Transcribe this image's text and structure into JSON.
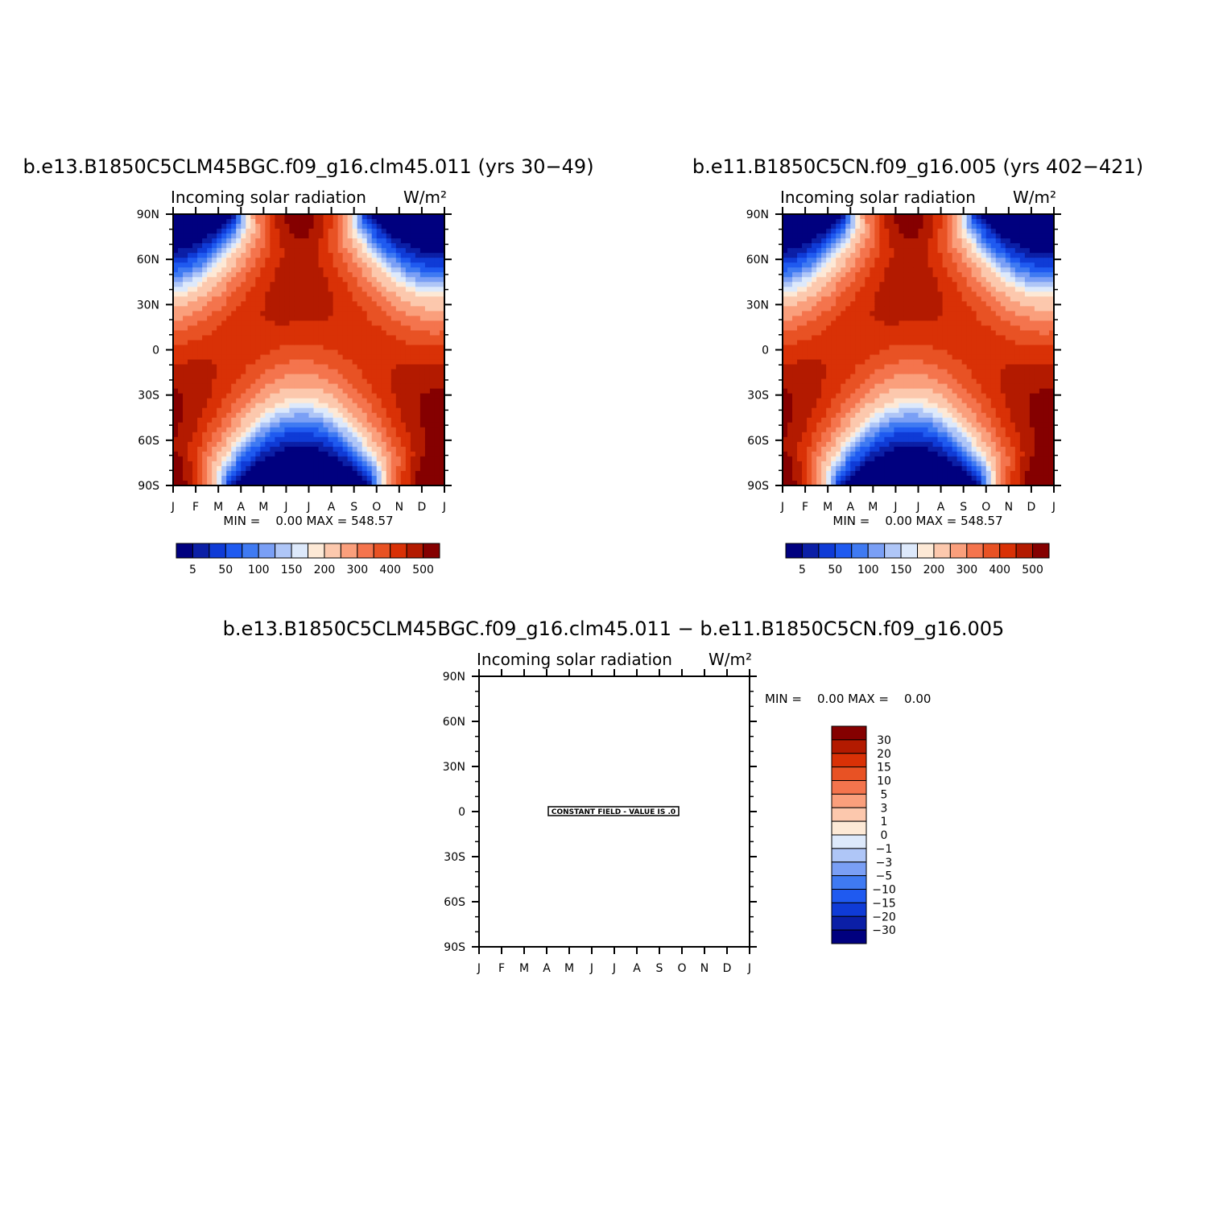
{
  "panels": [
    {
      "title": "b.e13.B1850C5CLM45BGC.f09_g16.clm45.011 (yrs 30−49)",
      "subtitle_left": "Incoming solar radiation",
      "subtitle_right": "W/m²",
      "min_max": "MIN =    0.00 MAX = 548.57"
    },
    {
      "title": "b.e11.B1850C5CN.f09_g16.005 (yrs 402−421)",
      "subtitle_left": "Incoming solar radiation",
      "subtitle_right": "W/m²",
      "min_max": "MIN =    0.00 MAX = 548.57"
    },
    {
      "title": "b.e13.B1850C5CLM45BGC.f09_g16.clm45.011 − b.e11.B1850C5CN.f09_g16.005",
      "subtitle_left": "Incoming solar radiation",
      "subtitle_right": "W/m²",
      "min_max": "MIN =    0.00 MAX =    0.00",
      "constant_field_label": "CONSTANT FIELD - VALUE IS .0"
    }
  ],
  "colors": {
    "abs_palette": [
      "#00007f",
      "#0b1fa6",
      "#0f3bd6",
      "#1f5af0",
      "#3f7af2",
      "#7a9ff5",
      "#afc6f7",
      "#dde9fb",
      "#fde9d6",
      "#fcc8ad",
      "#fa9f7c",
      "#f4744d",
      "#e85224",
      "#d93106",
      "#b31a00",
      "#850000"
    ],
    "diff_palette": [
      "#00007f",
      "#0b1fa6",
      "#0f3bd6",
      "#1f5af0",
      "#3f7af2",
      "#7a9ff5",
      "#afc6f7",
      "#dde9fb",
      "#fde9d6",
      "#fcc8ad",
      "#fa9f7c",
      "#f4744d",
      "#e85224",
      "#d93106",
      "#b31a00",
      "#850000"
    ]
  },
  "chart_data": [
    {
      "type": "heatmap",
      "title": "b.e13.B1850C5CLM45BGC.f09_g16.clm45.011 (yrs 30−49)",
      "variable": "Incoming solar radiation",
      "units": "W/m²",
      "x_ticks": [
        "J",
        "F",
        "M",
        "A",
        "M",
        "J",
        "J",
        "A",
        "S",
        "O",
        "N",
        "D",
        "J"
      ],
      "y_ticks": [
        "90N",
        "60N",
        "30N",
        "0",
        "30S",
        "60S",
        "90S"
      ],
      "ylim": [
        -90,
        90
      ],
      "min": 0.0,
      "max": 548.57,
      "contour_levels": [
        5,
        25,
        50,
        75,
        100,
        125,
        150,
        175,
        200,
        250,
        300,
        350,
        400,
        450,
        500
      ],
      "colorbar_labels": [
        "5",
        "50",
        "100",
        "150",
        "200",
        "300",
        "400",
        "500"
      ]
    },
    {
      "type": "heatmap",
      "title": "b.e11.B1850C5CN.f09_g16.005 (yrs 402−421)",
      "variable": "Incoming solar radiation",
      "units": "W/m²",
      "x_ticks": [
        "J",
        "F",
        "M",
        "A",
        "M",
        "J",
        "J",
        "A",
        "S",
        "O",
        "N",
        "D",
        "J"
      ],
      "y_ticks": [
        "90N",
        "60N",
        "30N",
        "0",
        "30S",
        "60S",
        "90S"
      ],
      "ylim": [
        -90,
        90
      ],
      "min": 0.0,
      "max": 548.57,
      "contour_levels": [
        5,
        25,
        50,
        75,
        100,
        125,
        150,
        175,
        200,
        250,
        300,
        350,
        400,
        450,
        500
      ],
      "colorbar_labels": [
        "5",
        "50",
        "100",
        "150",
        "200",
        "300",
        "400",
        "500"
      ]
    },
    {
      "type": "heatmap",
      "title": "b.e13.B1850C5CLM45BGC.f09_g16.clm45.011 − b.e11.B1850C5CN.f09_g16.005",
      "variable": "Incoming solar radiation",
      "units": "W/m²",
      "x_ticks": [
        "J",
        "F",
        "M",
        "A",
        "M",
        "J",
        "J",
        "A",
        "S",
        "O",
        "N",
        "D",
        "J"
      ],
      "y_ticks": [
        "90N",
        "60N",
        "30N",
        "0",
        "30S",
        "60S",
        "90S"
      ],
      "ylim": [
        -90,
        90
      ],
      "min": 0.0,
      "max": 0.0,
      "constant_value": 0.0,
      "colorbar_labels": [
        "30",
        "20",
        "15",
        "10",
        "5",
        "3",
        "1",
        "0",
        "−1",
        "−3",
        "−5",
        "−10",
        "−15",
        "−20",
        "−30"
      ]
    }
  ]
}
